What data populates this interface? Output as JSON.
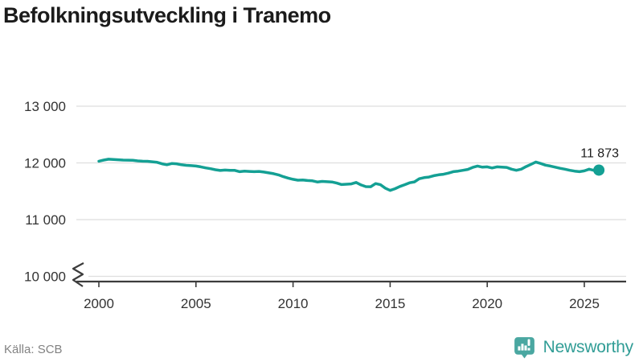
{
  "title": "Befolkningsutveckling i Tranemo",
  "source": {
    "label": "Källa: SCB"
  },
  "branding": {
    "name": "Newsworthy",
    "icon": "newsworthy-bar-chart-pin-icon",
    "text_color": "#319d96",
    "icon_color": "#4aa7a1"
  },
  "chart_data": {
    "type": "line",
    "title": "Befolkningsutveckling i Tranemo",
    "xlabel": "",
    "ylabel": "",
    "grid": true,
    "legend": "none",
    "axis_break": true,
    "xticks": [
      2000,
      2005,
      2010,
      2015,
      2020,
      2025
    ],
    "xtick_labels": [
      "2000",
      "2005",
      "2010",
      "2015",
      "2020",
      "2025"
    ],
    "yticks": [
      10000,
      11000,
      12000,
      13000
    ],
    "ytick_labels": [
      "10 000",
      "11 000",
      "12 000",
      "13 000"
    ],
    "ylim_display": [
      10000,
      13000
    ],
    "xlim": [
      1998.8,
      2027.2
    ],
    "end_label": "11 873",
    "end_value": 11873,
    "series": [
      {
        "name": "Befolkning i Tranemo",
        "color": "#14a094",
        "x_start": 2000.0,
        "x_step": 0.25,
        "x_end": 2025.75,
        "values": [
          12030,
          12050,
          12065,
          12060,
          12055,
          12050,
          12048,
          12045,
          12035,
          12030,
          12028,
          12020,
          12010,
          11985,
          11968,
          11988,
          11985,
          11968,
          11958,
          11952,
          11945,
          11930,
          11912,
          11898,
          11880,
          11866,
          11874,
          11870,
          11868,
          11846,
          11855,
          11850,
          11845,
          11850,
          11838,
          11824,
          11810,
          11788,
          11758,
          11732,
          11710,
          11695,
          11700,
          11690,
          11684,
          11664,
          11674,
          11668,
          11664,
          11644,
          11618,
          11624,
          11630,
          11655,
          11612,
          11582,
          11580,
          11635,
          11615,
          11555,
          11515,
          11545,
          11585,
          11615,
          11650,
          11665,
          11720,
          11740,
          11750,
          11775,
          11790,
          11800,
          11820,
          11845,
          11855,
          11870,
          11885,
          11920,
          11945,
          11925,
          11930,
          11910,
          11930,
          11925,
          11920,
          11890,
          11870,
          11890,
          11935,
          11975,
          12015,
          11990,
          11960,
          11945,
          11925,
          11905,
          11890,
          11870,
          11855,
          11845,
          11860,
          11890,
          11868,
          11873
        ]
      }
    ]
  }
}
